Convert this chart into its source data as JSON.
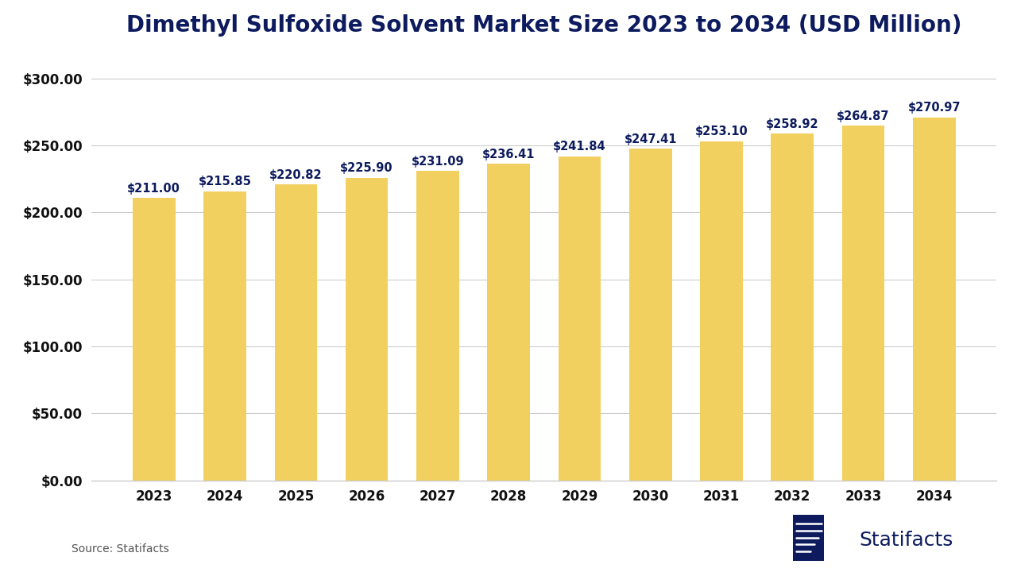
{
  "title": "Dimethyl Sulfoxide Solvent Market Size 2023 to 2034 (USD Million)",
  "years": [
    2023,
    2024,
    2025,
    2026,
    2027,
    2028,
    2029,
    2030,
    2031,
    2032,
    2033,
    2034
  ],
  "values": [
    211.0,
    215.85,
    220.82,
    225.9,
    231.09,
    236.41,
    241.84,
    247.41,
    253.1,
    258.92,
    264.87,
    270.97
  ],
  "bar_color": "#F2D060",
  "bar_edge_color": "none",
  "title_color": "#0D1B5E",
  "label_color": "#0D1B5E",
  "axis_tick_color": "#111111",
  "grid_color": "#CCCCCC",
  "background_color": "#FFFFFF",
  "ylim": [
    0,
    320
  ],
  "yticks": [
    0,
    50,
    100,
    150,
    200,
    250,
    300
  ],
  "source_text": "Source: Statifacts",
  "logo_text": "Statifacts",
  "title_fontsize": 20,
  "label_fontsize": 10.5,
  "tick_fontsize": 12,
  "source_fontsize": 10,
  "logo_fontsize": 18,
  "bar_width": 0.6
}
